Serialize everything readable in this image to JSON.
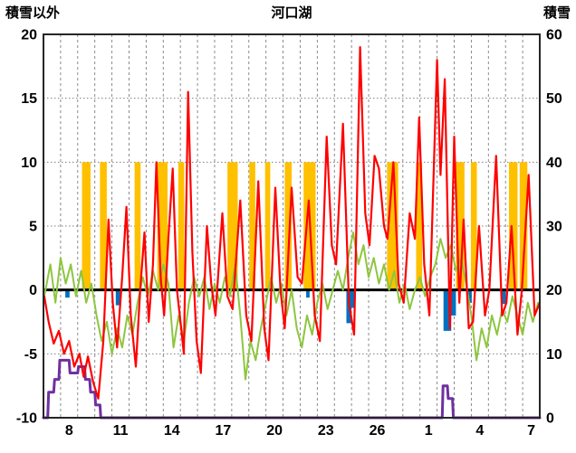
{
  "page": {
    "title": "河口湖"
  },
  "chart_data": {
    "type": "line",
    "title": "河口湖",
    "left_axis": {
      "label": "積雪以外",
      "min": -10,
      "max": 20,
      "ticks": [
        20,
        15,
        10,
        5,
        0,
        -5,
        -10
      ]
    },
    "right_axis": {
      "label": "積雪",
      "min": 0,
      "max": 60,
      "ticks": [
        60,
        50,
        40,
        30,
        20,
        10,
        0
      ]
    },
    "x_axis": {
      "min": 0,
      "max": 29,
      "labels": [
        "8",
        "11",
        "14",
        "17",
        "20",
        "23",
        "26",
        "1",
        "4",
        "7"
      ],
      "label_positions": [
        1.5,
        4.5,
        7.5,
        10.5,
        13.5,
        16.5,
        19.5,
        22.5,
        25.5,
        28.5
      ],
      "gridline_interval_days": 1
    },
    "grid": {
      "h_dotted_at": [
        15,
        10,
        5,
        -5
      ],
      "zero_line_at": 0
    },
    "colors": {
      "red": "#FF0000",
      "green": "#8DC63F",
      "orange": "#FFC000",
      "blue": "#0070C0",
      "purple": "#7030A0",
      "grid": "#7F7F7F",
      "axis_text": "#000000",
      "border": "#262626",
      "zero_line": "#000000",
      "background": "#FFFFFF"
    },
    "bars": [
      {
        "name": "orange-bars",
        "color_key": "orange",
        "axis": "left",
        "from": 0,
        "to": 10,
        "items": [
          {
            "x": 2.5,
            "w": 0.5
          },
          {
            "x": 3.5,
            "w": 0.4
          },
          {
            "x": 5.5,
            "w": 0.35
          },
          {
            "x": 6.95,
            "w": 0.6
          },
          {
            "x": 8.05,
            "w": 0.35
          },
          {
            "x": 11.05,
            "w": 0.6
          },
          {
            "x": 12.2,
            "w": 0.35
          },
          {
            "x": 13.1,
            "w": 0.3
          },
          {
            "x": 14.3,
            "w": 0.4
          },
          {
            "x": 15.55,
            "w": 0.7
          },
          {
            "x": 20.4,
            "w": 0.65
          },
          {
            "x": 21.95,
            "w": 0.35
          },
          {
            "x": 24.35,
            "w": 0.5
          },
          {
            "x": 25.15,
            "w": 0.35
          },
          {
            "x": 27.45,
            "w": 0.5
          },
          {
            "x": 28.05,
            "w": 0.45
          }
        ]
      },
      {
        "name": "blue-bars",
        "color_key": "blue",
        "axis": "left",
        "from": 0,
        "items": [
          {
            "x": 1.4,
            "w": 0.25,
            "v": -0.6
          },
          {
            "x": 4.35,
            "w": 0.25,
            "v": -1.2
          },
          {
            "x": 15.45,
            "w": 0.2,
            "v": -0.6
          },
          {
            "x": 17.85,
            "w": 0.3,
            "v": -2.6
          },
          {
            "x": 18.1,
            "w": 0.25,
            "v": -1.4
          },
          {
            "x": 23.6,
            "w": 0.45,
            "v": -3.2
          },
          {
            "x": 23.95,
            "w": 0.3,
            "v": -2.0
          },
          {
            "x": 24.9,
            "w": 0.25,
            "v": -1.0
          },
          {
            "x": 26.9,
            "w": 0.25,
            "v": -1.1
          }
        ]
      }
    ],
    "series": [
      {
        "name": "green-line",
        "color_key": "green",
        "axis": "left",
        "width": 2,
        "points": [
          [
            0.05,
            -0.5
          ],
          [
            0.4,
            2
          ],
          [
            0.7,
            -1
          ],
          [
            1.0,
            2.5
          ],
          [
            1.3,
            0.5
          ],
          [
            1.6,
            2
          ],
          [
            1.9,
            -0.5
          ],
          [
            2.2,
            1.5
          ],
          [
            2.5,
            -1
          ],
          [
            2.8,
            0.5
          ],
          [
            3.1,
            -2
          ],
          [
            3.4,
            -4
          ],
          [
            3.7,
            -2.5
          ],
          [
            4.0,
            -5
          ],
          [
            4.3,
            -3
          ],
          [
            4.6,
            -4.5
          ],
          [
            4.9,
            -2
          ],
          [
            5.2,
            -3.5
          ],
          [
            5.5,
            -1
          ],
          [
            5.8,
            1
          ],
          [
            6.1,
            -0.5
          ],
          [
            6.4,
            1.5
          ],
          [
            6.7,
            0
          ],
          [
            7.0,
            2
          ],
          [
            7.3,
            0.5
          ],
          [
            7.6,
            -4.5
          ],
          [
            7.9,
            -2
          ],
          [
            8.2,
            -4
          ],
          [
            8.5,
            -1
          ],
          [
            8.8,
            1
          ],
          [
            9.1,
            -0.5
          ],
          [
            9.4,
            1
          ],
          [
            9.7,
            -1.5
          ],
          [
            10.0,
            0.5
          ],
          [
            10.3,
            -1
          ],
          [
            10.6,
            1
          ],
          [
            10.9,
            -0.5
          ],
          [
            11.2,
            2
          ],
          [
            11.5,
            -2
          ],
          [
            11.8,
            -7
          ],
          [
            12.1,
            -4
          ],
          [
            12.4,
            -5.5
          ],
          [
            12.7,
            -3
          ],
          [
            13.0,
            -1
          ],
          [
            13.3,
            1
          ],
          [
            13.6,
            -1
          ],
          [
            13.9,
            0.5
          ],
          [
            14.2,
            -2
          ],
          [
            14.5,
            0
          ],
          [
            14.8,
            -3
          ],
          [
            15.1,
            -4.5
          ],
          [
            15.4,
            -2
          ],
          [
            15.7,
            -3.5
          ],
          [
            16.0,
            -1
          ],
          [
            16.3,
            0.5
          ],
          [
            16.6,
            -1.5
          ],
          [
            16.9,
            0
          ],
          [
            17.2,
            1.5
          ],
          [
            17.5,
            0
          ],
          [
            17.8,
            2.5
          ],
          [
            18.1,
            4.5
          ],
          [
            18.4,
            2
          ],
          [
            18.7,
            3.5
          ],
          [
            19.0,
            1
          ],
          [
            19.3,
            2.5
          ],
          [
            19.6,
            0.5
          ],
          [
            19.9,
            2
          ],
          [
            20.2,
            0
          ],
          [
            20.5,
            1.5
          ],
          [
            20.8,
            -1
          ],
          [
            21.1,
            0.5
          ],
          [
            21.4,
            -1.5
          ],
          [
            21.7,
            0
          ],
          [
            22.0,
            1
          ],
          [
            22.3,
            -0.5
          ],
          [
            22.6,
            1
          ],
          [
            22.9,
            2
          ],
          [
            23.2,
            4
          ],
          [
            23.5,
            2.5
          ],
          [
            23.8,
            3.5
          ],
          [
            24.1,
            1.5
          ],
          [
            24.4,
            2.5
          ],
          [
            24.7,
            0.5
          ],
          [
            25.0,
            -2
          ],
          [
            25.3,
            -5.5
          ],
          [
            25.6,
            -3
          ],
          [
            25.9,
            -4.5
          ],
          [
            26.2,
            -2
          ],
          [
            26.5,
            -3.5
          ],
          [
            26.8,
            -1.5
          ],
          [
            27.1,
            -2.5
          ],
          [
            27.4,
            -0.5
          ],
          [
            27.7,
            -2
          ],
          [
            28.0,
            -3.5
          ],
          [
            28.3,
            -1
          ],
          [
            28.6,
            -2.5
          ],
          [
            28.9,
            -1
          ]
        ]
      },
      {
        "name": "purple-line",
        "color_key": "purple",
        "axis": "right",
        "width": 3,
        "points": [
          [
            0,
            0
          ],
          [
            0.25,
            0
          ],
          [
            0.3,
            4
          ],
          [
            0.6,
            4
          ],
          [
            0.65,
            6
          ],
          [
            0.9,
            6
          ],
          [
            0.95,
            9
          ],
          [
            1.5,
            9
          ],
          [
            1.55,
            7
          ],
          [
            2.0,
            7
          ],
          [
            2.05,
            8
          ],
          [
            2.4,
            8
          ],
          [
            2.45,
            6
          ],
          [
            2.7,
            6
          ],
          [
            2.75,
            4
          ],
          [
            3.0,
            4
          ],
          [
            3.05,
            2
          ],
          [
            3.3,
            2
          ],
          [
            3.35,
            0
          ],
          [
            23.3,
            0
          ],
          [
            23.35,
            5
          ],
          [
            23.6,
            5
          ],
          [
            23.65,
            3
          ],
          [
            23.9,
            3
          ],
          [
            23.95,
            0
          ],
          [
            29,
            0
          ]
        ]
      },
      {
        "name": "red-line",
        "color_key": "red",
        "axis": "left",
        "width": 2.2,
        "points": [
          [
            0.05,
            -0.5
          ],
          [
            0.3,
            -2.5
          ],
          [
            0.6,
            -4.2
          ],
          [
            0.9,
            -3.2
          ],
          [
            1.2,
            -5
          ],
          [
            1.5,
            -4
          ],
          [
            1.8,
            -6
          ],
          [
            2.1,
            -5
          ],
          [
            2.35,
            -6.8
          ],
          [
            2.6,
            -5.2
          ],
          [
            2.9,
            -7.2
          ],
          [
            3.2,
            -8.5
          ],
          [
            3.5,
            -4
          ],
          [
            3.8,
            5.5
          ],
          [
            4.05,
            -1
          ],
          [
            4.3,
            -4.5
          ],
          [
            4.6,
            1
          ],
          [
            4.85,
            6.5
          ],
          [
            5.1,
            -2
          ],
          [
            5.4,
            -6
          ],
          [
            5.65,
            0
          ],
          [
            5.9,
            4.5
          ],
          [
            6.15,
            -2.5
          ],
          [
            6.4,
            2
          ],
          [
            6.6,
            10
          ],
          [
            6.85,
            1
          ],
          [
            7.05,
            -2
          ],
          [
            7.3,
            4
          ],
          [
            7.55,
            9.5
          ],
          [
            7.8,
            0
          ],
          [
            8.05,
            -3
          ],
          [
            8.2,
            -5
          ],
          [
            8.45,
            15.5
          ],
          [
            8.7,
            3
          ],
          [
            8.95,
            -4
          ],
          [
            9.2,
            -6.5
          ],
          [
            9.55,
            5
          ],
          [
            9.8,
            0.5
          ],
          [
            10.05,
            -2
          ],
          [
            10.45,
            6
          ],
          [
            10.75,
            -0.5
          ],
          [
            11.05,
            -1.5
          ],
          [
            11.5,
            7
          ],
          [
            11.85,
            -2
          ],
          [
            12.15,
            -4
          ],
          [
            12.55,
            8.5
          ],
          [
            12.9,
            -3
          ],
          [
            13.15,
            -5.5
          ],
          [
            13.55,
            8
          ],
          [
            13.85,
            0
          ],
          [
            14.1,
            -3
          ],
          [
            14.5,
            8
          ],
          [
            14.85,
            1
          ],
          [
            15.1,
            0.5
          ],
          [
            15.5,
            7
          ],
          [
            15.85,
            -2
          ],
          [
            16.15,
            -4
          ],
          [
            16.55,
            12
          ],
          [
            16.85,
            3.5
          ],
          [
            17.1,
            2
          ],
          [
            17.5,
            13
          ],
          [
            17.85,
            -1
          ],
          [
            18.15,
            -3.5
          ],
          [
            18.5,
            19
          ],
          [
            18.8,
            6
          ],
          [
            19.05,
            3.5
          ],
          [
            19.35,
            10.5
          ],
          [
            19.6,
            9.5
          ],
          [
            19.9,
            5
          ],
          [
            20.1,
            4
          ],
          [
            20.45,
            10
          ],
          [
            20.75,
            0.5
          ],
          [
            21.05,
            -1
          ],
          [
            21.4,
            6
          ],
          [
            21.7,
            4
          ],
          [
            21.95,
            13.5
          ],
          [
            22.25,
            2
          ],
          [
            22.55,
            -2
          ],
          [
            23.0,
            18
          ],
          [
            23.2,
            9
          ],
          [
            23.45,
            16.5
          ],
          [
            23.75,
            -3
          ],
          [
            24.0,
            12
          ],
          [
            24.3,
            -1
          ],
          [
            24.55,
            5.5
          ],
          [
            24.85,
            -3
          ],
          [
            25.1,
            -2.5
          ],
          [
            25.45,
            5
          ],
          [
            25.8,
            -2
          ],
          [
            26.05,
            0
          ],
          [
            26.45,
            10.5
          ],
          [
            26.8,
            -2
          ],
          [
            27.05,
            -1
          ],
          [
            27.35,
            5
          ],
          [
            27.7,
            -3.5
          ],
          [
            27.95,
            0
          ],
          [
            28.35,
            9
          ],
          [
            28.7,
            -2
          ],
          [
            29,
            -1
          ]
        ]
      }
    ]
  }
}
